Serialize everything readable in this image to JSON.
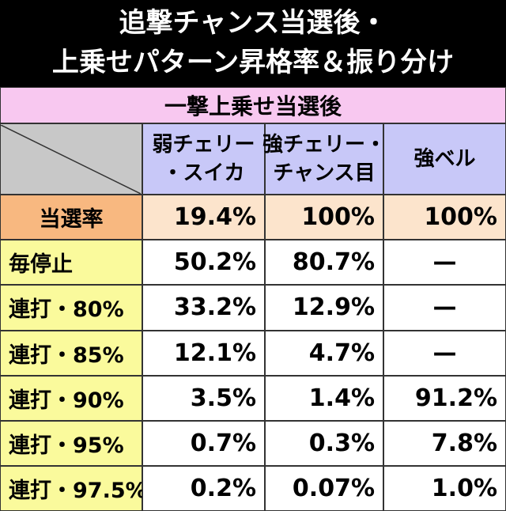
{
  "title": [
    "追撃チャンス当選後・",
    "上乗せパターン昇格率＆振り分け"
  ],
  "table": {
    "section": "一撃上乗せ当選後",
    "columns": [
      [
        "弱チェリー",
        "・スイカ"
      ],
      [
        "強チェリー・",
        "チャンス目"
      ],
      [
        "強ベル"
      ]
    ],
    "rows": [
      [
        "当選率",
        "19.4%",
        "100%",
        "100%"
      ],
      [
        "毎停止",
        "50.2%",
        "80.7%",
        "—"
      ],
      [
        "連打・80%",
        "33.2%",
        "12.9%",
        "—"
      ],
      [
        "連打・85%",
        "12.1%",
        "4.7%",
        "—"
      ],
      [
        "連打・90%",
        "3.5%",
        "1.4%",
        "91.2%"
      ],
      [
        "連打・95%",
        "0.7%",
        "0.3%",
        "7.8%"
      ],
      [
        "連打・97.5%",
        "0.2%",
        "0.07%",
        "1.0%"
      ]
    ]
  }
}
